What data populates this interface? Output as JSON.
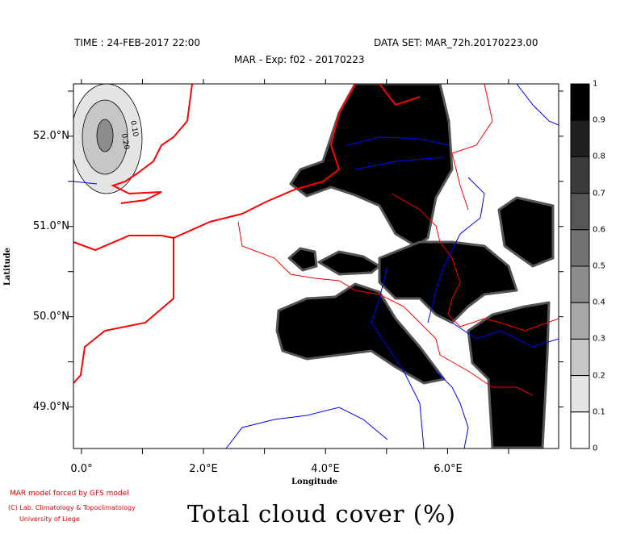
{
  "header": {
    "time": "TIME : 24-FEB-2017 22:00",
    "dataset": "DATA SET: MAR_72h.20170223.00",
    "subtitle": "MAR - Exp: f02 - 20170223"
  },
  "chart_data": {
    "type": "heatmap",
    "title": "Total cloud cover (%)",
    "xlabel": "Longitude",
    "ylabel": "Latitude",
    "xlim": [
      -0.13,
      7.82
    ],
    "ylim": [
      48.54,
      52.58
    ],
    "x_ticks": [
      "0.0°",
      "2.0°E",
      "4.0°E",
      "6.0°E"
    ],
    "y_ticks": [
      "52.0°N",
      "51.0°N",
      "50.0°N",
      "49.0°N"
    ],
    "colorbar": {
      "labels": [
        "1",
        "0.9",
        "0.8",
        "0.7",
        "0.6",
        "0.5",
        "0.4",
        "0.3",
        "0.2",
        "0.1",
        "0"
      ],
      "colors": [
        "#000000",
        "#202020",
        "#3c3c3c",
        "#575757",
        "#727272",
        "#8c8c8c",
        "#a8a8a8",
        "#c6c6c6",
        "#e4e4e4",
        "#ffffff"
      ]
    },
    "contour_labels": [
      "0.10",
      "0.20"
    ],
    "coastline_color": "#ff0000",
    "river_color": "#0000ff"
  },
  "footer": {
    "credit1": "MAR model forced by GFS model",
    "credit2": "(C) Lab. Climatology & Topoclimatology",
    "credit3": "University of Liege"
  }
}
